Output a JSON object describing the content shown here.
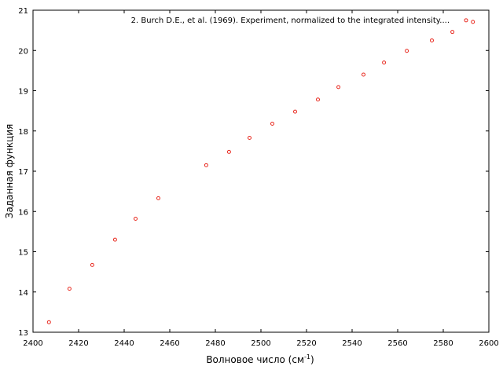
{
  "chart_data": {
    "type": "scatter",
    "xlabel_base": "Волновое число (см",
    "xlabel_sup": "-1",
    "xlabel_end": ")",
    "ylabel": "Заданная функция",
    "xlim": [
      2400,
      2600
    ],
    "ylim": [
      13,
      21
    ],
    "xticks": [
      "2400",
      "2420",
      "2440",
      "2460",
      "2480",
      "2500",
      "2520",
      "2540",
      "2560",
      "2580",
      "2600"
    ],
    "yticks": [
      "13",
      "14",
      "15",
      "16",
      "17",
      "18",
      "19",
      "20",
      "21"
    ],
    "grid": false,
    "legend_position": "top-right",
    "marker_color": "#e8281e",
    "series": [
      {
        "name": "2. Burch D.E., et al. (1969). Experiment, normalized to the integrated intensity....",
        "x": [
          2407,
          2416,
          2426,
          2436,
          2445,
          2455,
          2476,
          2486,
          2495,
          2505,
          2515,
          2525,
          2534,
          2545,
          2554,
          2564,
          2575,
          2584,
          2590,
          2593
        ],
        "y": [
          13.25,
          14.08,
          14.67,
          15.3,
          15.82,
          16.33,
          17.15,
          17.48,
          17.83,
          18.18,
          18.48,
          18.78,
          19.09,
          19.4,
          19.7,
          19.99,
          20.25,
          20.46,
          20.75,
          20.71
        ]
      }
    ]
  }
}
